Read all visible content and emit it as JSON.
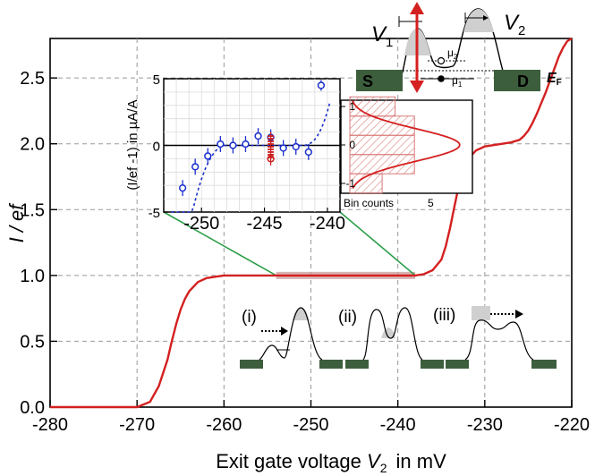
{
  "chart_data": [
    {
      "type": "line",
      "xlabel": "Exit gate voltage",
      "xlabel_var": "V",
      "xlabel_sub": "2",
      "xlabel_unit": "in mV",
      "ylabel": "I / ef",
      "xlim": [
        -280,
        -220
      ],
      "ylim": [
        0,
        2.8
      ],
      "xticks": [
        "-280",
        "-270",
        "-260",
        "-250",
        "-240",
        "-230",
        "-220"
      ],
      "yticks": [
        "0.0",
        "0.5",
        "1.0",
        "1.5",
        "2.0",
        "2.5"
      ],
      "grid": "dashed",
      "series": [
        {
          "color": "#d42020",
          "x": [
            -270,
            -268.5,
            -267.5,
            -266.5,
            -266,
            -265.5,
            -265,
            -264.5,
            -264,
            -263,
            -262,
            -261,
            -260,
            -259,
            -258,
            -256,
            -250,
            -245,
            -240,
            -238,
            -237,
            -236,
            -235,
            -234.5,
            -234,
            -233.5,
            -233,
            -232.5,
            -232,
            -231,
            -230,
            -229,
            -228,
            -227,
            -226,
            -225.5,
            -225,
            -224.5,
            -224,
            -223.5,
            -223,
            -222.5,
            -222,
            -221.5,
            -221,
            -220.5,
            -220
          ],
          "y": [
            0.0,
            0.04,
            0.16,
            0.36,
            0.5,
            0.63,
            0.74,
            0.82,
            0.88,
            0.95,
            0.98,
            0.99,
            1.0,
            1.0,
            1.0,
            1.0,
            1.0,
            1.0,
            1.0,
            1.0,
            1.01,
            1.04,
            1.12,
            1.22,
            1.36,
            1.52,
            1.68,
            1.8,
            1.88,
            1.95,
            1.98,
            1.99,
            2.0,
            2.01,
            2.03,
            2.06,
            2.1,
            2.16,
            2.23,
            2.31,
            2.39,
            2.48,
            2.57,
            2.66,
            2.73,
            2.78,
            2.8
          ]
        }
      ],
      "highlight_range": [
        -254,
        -238
      ]
    },
    {
      "type": "scatter",
      "ylabel": "(I/ef -1) in µA/A",
      "xlim": [
        -253,
        -239
      ],
      "ylim": [
        -5,
        5
      ],
      "xticks": [
        "-250",
        "-245",
        "-240"
      ],
      "yticks": [
        "-5",
        "0",
        "5"
      ],
      "points": [
        {
          "x": -251.5,
          "y": -3.2,
          "err": 0.6
        },
        {
          "x": -250.5,
          "y": -1.6,
          "err": 0.6
        },
        {
          "x": -249.5,
          "y": -0.8,
          "err": 0.6
        },
        {
          "x": -248.5,
          "y": 0.1,
          "err": 0.6
        },
        {
          "x": -247.5,
          "y": 0.0,
          "err": 0.6
        },
        {
          "x": -246.5,
          "y": 0.1,
          "err": 0.6
        },
        {
          "x": -245.5,
          "y": 0.7,
          "err": 0.6
        },
        {
          "x": -244.5,
          "y": 0.6,
          "err": 0.6
        },
        {
          "x": -243.5,
          "y": -0.2,
          "err": 0.6
        },
        {
          "x": -242.5,
          "y": -0.1,
          "err": 0.6
        },
        {
          "x": -241.5,
          "y": -0.5,
          "err": 0.6
        },
        {
          "x": -240.5,
          "y": 4.5,
          "err": 0.4
        }
      ],
      "highlight_point": {
        "x": -244.5,
        "y": -1.0
      },
      "red_markers": [
        -0.9,
        -0.7,
        -0.5,
        -0.3,
        -0.1,
        0.1,
        0.3,
        0.5,
        0.7
      ],
      "colors": {
        "points": "#1a2ecc",
        "highlight": "#cc1e1e"
      }
    },
    {
      "type": "bar",
      "xlabel": "Bin counts",
      "xtick": "5",
      "yticks": [
        "1",
        "0",
        "-1"
      ],
      "bins": [
        {
          "center": 1.0,
          "count": 3.5
        },
        {
          "center": 0.5,
          "count": 5.0
        },
        {
          "center": 0.0,
          "count": 5.0
        },
        {
          "center": -0.5,
          "count": 5.0
        },
        {
          "center": -1.0,
          "count": 2.5
        }
      ],
      "gaussian": {
        "mu": 0.0,
        "sigma": 0.42,
        "peak": 8.5
      }
    }
  ],
  "schematic": {
    "v1": "V",
    "v1_sub": "1",
    "v2": "V",
    "v2_sub": "2",
    "mu2": "μ",
    "mu2_sub": "2",
    "mu1": "μ",
    "mu1_sub": "1",
    "source": "S",
    "drain": "D",
    "ef": "E",
    "ef_sub": "F"
  },
  "stages": [
    {
      "label": "(i)"
    },
    {
      "label": "(ii)"
    },
    {
      "label": "(iii)"
    }
  ],
  "colors": {
    "curve": "#d42020",
    "electrode": "#3d5e3d",
    "inset_link": "#2e9e4a",
    "band": "#c89a9a"
  }
}
